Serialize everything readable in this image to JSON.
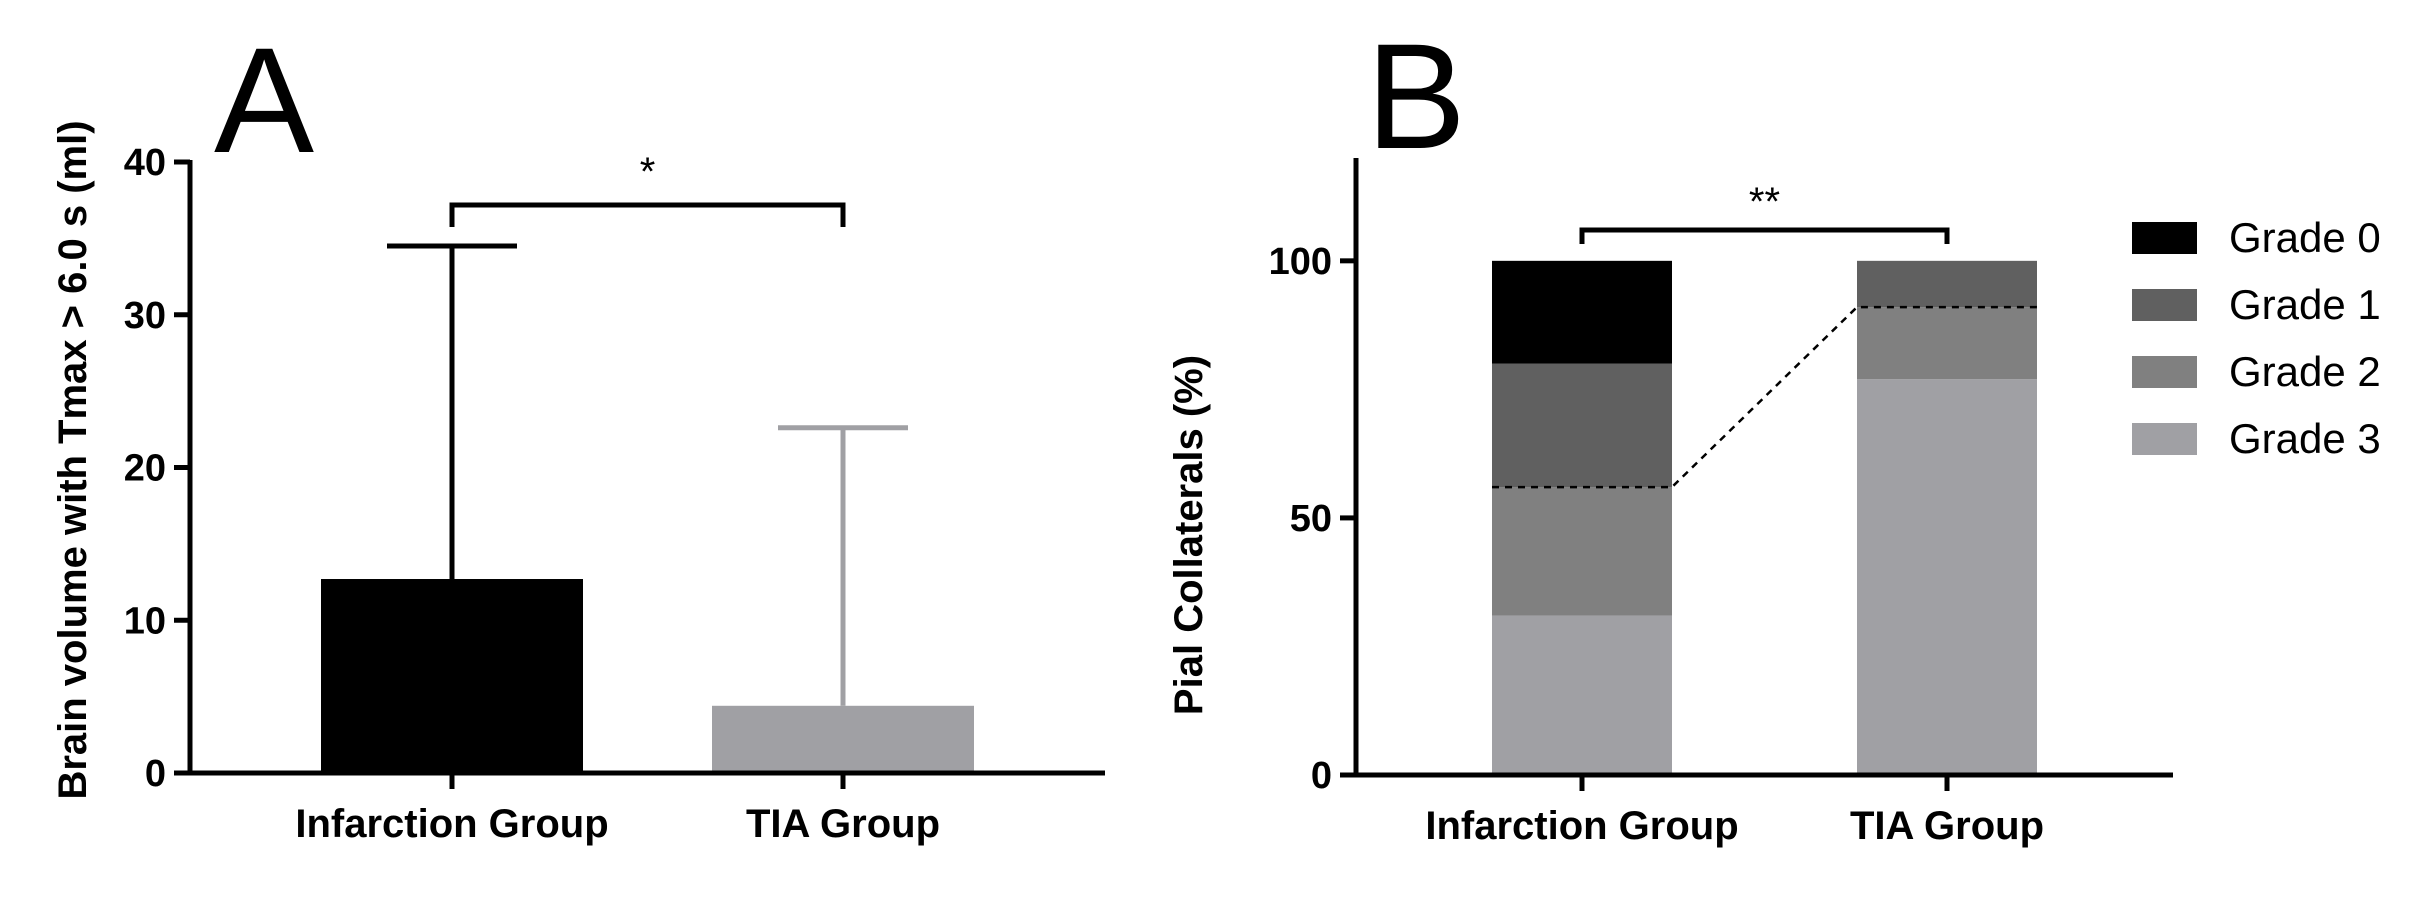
{
  "chart_data": [
    {
      "panel": "A",
      "type": "bar",
      "ylabel": "Brain volume with Tmax > 6.0 s (ml)",
      "xlabel": "",
      "categories": [
        "Infarction Group",
        "TIA Group"
      ],
      "values": [
        12.7,
        4.4
      ],
      "error_upper": [
        34.5,
        22.6
      ],
      "bar_colors": [
        "#000000",
        "#a0a0a4"
      ],
      "ylim": [
        0,
        40
      ],
      "yticks": [
        "0",
        "10",
        "20",
        "30",
        "40"
      ],
      "significance": "*",
      "grid": false
    },
    {
      "panel": "B",
      "type": "bar",
      "stacked": true,
      "ylabel": "Pial Collaterals (%)",
      "xlabel": "",
      "categories": [
        "Infarction Group",
        "TIA Group"
      ],
      "ylim": [
        0,
        120
      ],
      "yticks": [
        "0",
        "50",
        "100"
      ],
      "series": [
        {
          "name": "Grade 3",
          "color": "#a0a0a4",
          "values": [
            31,
            77
          ]
        },
        {
          "name": "Grade 2",
          "color": "#808080",
          "values": [
            25,
            14
          ]
        },
        {
          "name": "Grade 1",
          "color": "#606060",
          "values": [
            24,
            9
          ]
        },
        {
          "name": "Grade 0",
          "color": "#000000",
          "values": [
            20,
            0
          ]
        }
      ],
      "legend_order": [
        "Grade 0",
        "Grade 1",
        "Grade 2",
        "Grade 3"
      ],
      "legend_position": "right",
      "dashed_line_values": [
        56,
        91
      ],
      "significance": "**",
      "grid": false
    }
  ]
}
